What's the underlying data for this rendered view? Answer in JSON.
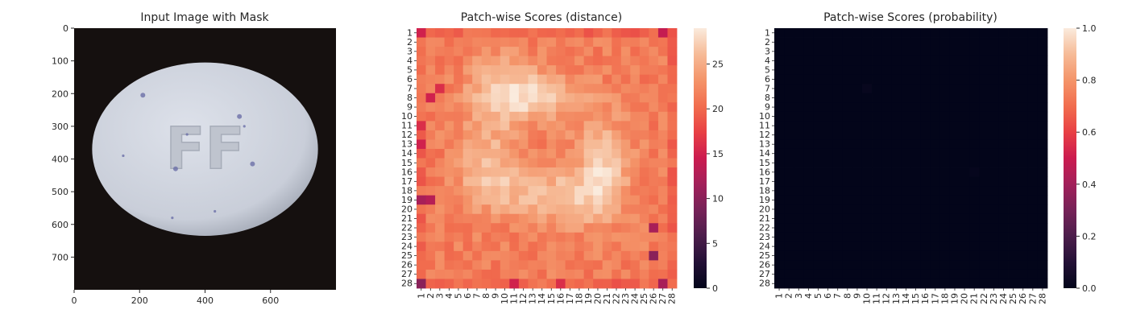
{
  "chart_data": [
    {
      "type": "image",
      "title": "Input Image with Mask",
      "x_ticks": [
        0,
        200,
        400,
        600
      ],
      "y_ticks": [
        0,
        100,
        200,
        300,
        400,
        500,
        600,
        700
      ],
      "xlim": [
        0,
        800
      ],
      "ylim": [
        800,
        0
      ],
      "background_color": "#15100f",
      "object": {
        "shape": "ellipse",
        "color": "#cdd2dc",
        "center": [
          400,
          370
        ],
        "radii": [
          345,
          265
        ],
        "embossed_text": "FF"
      }
    },
    {
      "type": "heatmap",
      "title": "Patch-wise Scores (distance)",
      "grid": 28,
      "row_labels": [
        "1",
        "2",
        "3",
        "4",
        "5",
        "6",
        "7",
        "8",
        "9",
        "10",
        "11",
        "12",
        "13",
        "14",
        "15",
        "16",
        "17",
        "18",
        "19",
        "20",
        "21",
        "22",
        "23",
        "24",
        "25",
        "26",
        "27",
        "28"
      ],
      "col_labels": [
        "1",
        "2",
        "3",
        "4",
        "5",
        "6",
        "7",
        "8",
        "9",
        "10",
        "11",
        "12",
        "13",
        "14",
        "15",
        "16",
        "17",
        "18",
        "19",
        "20",
        "21",
        "22",
        "23",
        "24",
        "25",
        "26",
        "27",
        "28"
      ],
      "colormap": "rocket",
      "value_range": [
        0,
        29
      ],
      "colorbar_ticks": [
        0,
        5,
        10,
        15,
        20,
        25
      ],
      "base_value": 21.5,
      "hot_regions": [
        {
          "cx": 10,
          "cy": 7.5,
          "sx": 2.5,
          "sy": 2.5,
          "amp": 6.5
        },
        {
          "cx": 15,
          "cy": 8,
          "sx": 3,
          "sy": 1.5,
          "amp": 4.5
        },
        {
          "cx": 8,
          "cy": 15,
          "sx": 2,
          "sy": 3,
          "amp": 4
        },
        {
          "cx": 20.5,
          "cy": 15.5,
          "sx": 2,
          "sy": 3.5,
          "amp": 6
        },
        {
          "cx": 12,
          "cy": 18,
          "sx": 4,
          "sy": 2,
          "amp": 3.5
        },
        {
          "cx": 17,
          "cy": 19,
          "sx": 3,
          "sy": 2,
          "amp": 3
        }
      ],
      "low_cells": [
        [
          1,
          1,
          15
        ],
        [
          1,
          27,
          14
        ],
        [
          8,
          2,
          15
        ],
        [
          19,
          1,
          12
        ],
        [
          19,
          2,
          13
        ],
        [
          28,
          1,
          10
        ],
        [
          28,
          27,
          12
        ],
        [
          25,
          26,
          10
        ],
        [
          22,
          26,
          12
        ],
        [
          13,
          1,
          15
        ],
        [
          7,
          3,
          16
        ],
        [
          11,
          1,
          16
        ],
        [
          28,
          11,
          15
        ],
        [
          28,
          16,
          16
        ]
      ]
    },
    {
      "type": "heatmap",
      "title": "Patch-wise Scores (probability)",
      "grid": 28,
      "row_labels": [
        "1",
        "2",
        "3",
        "4",
        "5",
        "6",
        "7",
        "8",
        "9",
        "10",
        "11",
        "12",
        "13",
        "14",
        "15",
        "16",
        "17",
        "18",
        "19",
        "20",
        "21",
        "22",
        "23",
        "24",
        "25",
        "26",
        "27",
        "28"
      ],
      "col_labels": [
        "1",
        "2",
        "3",
        "4",
        "5",
        "6",
        "7",
        "8",
        "9",
        "10",
        "11",
        "12",
        "13",
        "14",
        "15",
        "16",
        "17",
        "18",
        "19",
        "20",
        "21",
        "22",
        "23",
        "24",
        "25",
        "26",
        "27",
        "28"
      ],
      "colormap": "rocket",
      "value_range": [
        0,
        1
      ],
      "colorbar_ticks": [
        0.0,
        0.2,
        0.4,
        0.6,
        0.8,
        1.0
      ],
      "fill_value": 0.0,
      "cells": [
        [
          7,
          10,
          0.015
        ],
        [
          16,
          21,
          0.01
        ]
      ]
    }
  ]
}
